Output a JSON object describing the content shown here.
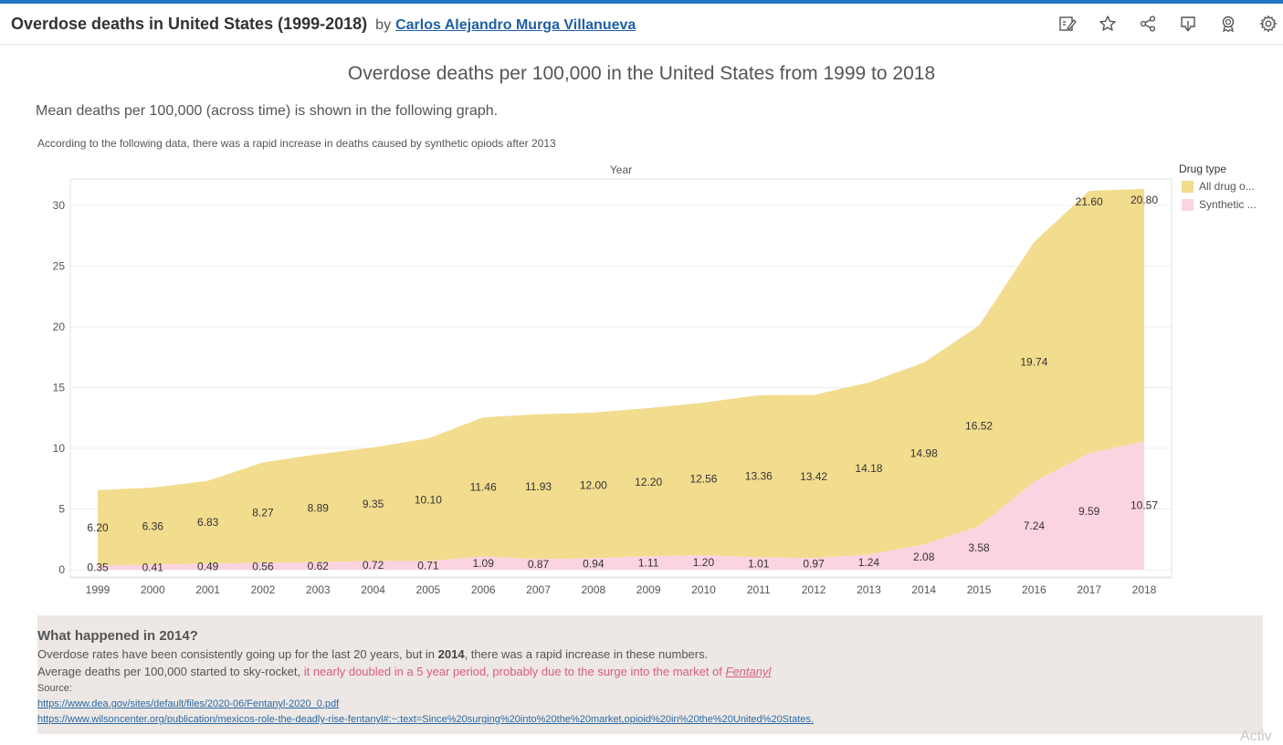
{
  "header": {
    "title": "Overdose deaths in United States (1999-2018)",
    "by": "by",
    "author": "Carlos Alejandro Murga Villanueva",
    "icons": [
      "data-guide-icon",
      "star-icon",
      "share-icon",
      "download-icon",
      "badge-icon",
      "settings-icon"
    ]
  },
  "dashboard": {
    "title": "Overdose deaths per 100,000 in the United States from 1999 to 2018",
    "subtitle": "Mean deaths per 100,000 (across time) is shown in the following graph.",
    "note": "According to the following data, there was a rapid increase in deaths caused by synthetic opiods after 2013"
  },
  "legend": {
    "title": "Drug type",
    "items": [
      "All drug o...",
      "Synthetic ..."
    ]
  },
  "chart_data": {
    "type": "area",
    "title": "",
    "xlabel": "Year",
    "ylabel": "",
    "ylim": [
      0,
      32
    ],
    "yticks": [
      0,
      5,
      10,
      15,
      20,
      25,
      30
    ],
    "stacked": true,
    "colors": [
      "#f2dc8e",
      "#fcd3e0"
    ],
    "x": [
      "1999",
      "2000",
      "2001",
      "2002",
      "2003",
      "2004",
      "2005",
      "2006",
      "2007",
      "2008",
      "2009",
      "2010",
      "2011",
      "2012",
      "2013",
      "2014",
      "2015",
      "2016",
      "2017",
      "2018"
    ],
    "series": [
      {
        "name": "Synthetic ...",
        "values": [
          0.35,
          0.41,
          0.49,
          0.56,
          0.62,
          0.72,
          0.71,
          1.09,
          0.87,
          0.94,
          1.11,
          1.2,
          1.01,
          0.97,
          1.24,
          2.08,
          3.58,
          7.24,
          9.59,
          10.57
        ]
      },
      {
        "name": "All drug o...",
        "values": [
          6.2,
          6.36,
          6.83,
          8.27,
          8.89,
          9.35,
          10.1,
          11.46,
          11.93,
          12.0,
          12.2,
          12.56,
          13.36,
          13.42,
          14.18,
          14.98,
          16.52,
          19.74,
          21.6,
          20.8
        ]
      }
    ],
    "labels": {
      "synthetic": [
        "0.35",
        "0.41",
        "0.49",
        "0.56",
        "0.62",
        "0.72",
        "0.71",
        "1.09",
        "0.87",
        "0.94",
        "1.11",
        "1.20",
        "1.01",
        "0.97",
        "1.24",
        "2.08",
        "3.58",
        "7.24",
        "9.59",
        "10.57"
      ],
      "all": [
        "6.20",
        "6.36",
        "6.83",
        "8.27",
        "8.89",
        "9.35",
        "10.10",
        "11.46",
        "11.93",
        "12.00",
        "12.20",
        "12.56",
        "13.36",
        "13.42",
        "14.18",
        "14.98",
        "16.52",
        "19.74",
        "21.60",
        "20.80"
      ]
    },
    "grid": true,
    "legend": "right"
  },
  "info": {
    "heading": "What happened in 2014?",
    "p1_before": "Overdose rates have been consistently going up for the last 20 years, but in ",
    "p1_bold": "2014",
    "p1_after": ", there was a rapid increase in these numbers.",
    "p2_before": "Average deaths per 100,000 started to sky-rocket, ",
    "p2_highlight": "it nearly doubled in a 5 year period, probably due to the surge into the market of ",
    "p2_link": "Fentanyl",
    "source_label": "Source:",
    "link1": "https://www.dea.gov/sites/default/files/2020-06/Fentanyl-2020_0.pdf",
    "link2": "https://www.wilsoncenter.org/publication/mexicos-role-the-deadly-rise-fentanyl#:~:text=Since%20surging%20into%20the%20market,opioid%20in%20the%20United%20States."
  },
  "watermark": "Activ"
}
